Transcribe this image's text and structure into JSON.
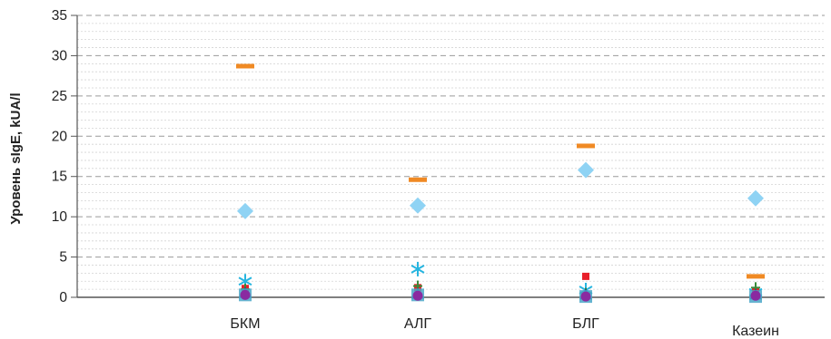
{
  "chart_data": {
    "type": "scatter",
    "ylabel": "Уровень sIgE, kUA/l",
    "ylim": [
      0,
      35
    ],
    "yticks": [
      0,
      5,
      10,
      15,
      20,
      25,
      30,
      35
    ],
    "minor_step": 1,
    "grid": true,
    "categories": [
      "БКМ",
      "АЛГ",
      "БЛГ",
      "Казеин"
    ],
    "series": [
      {
        "marker": "dash",
        "color": "#f08a24",
        "values": [
          28.7,
          14.6,
          18.8,
          2.6
        ]
      },
      {
        "marker": "diamond",
        "color": "#8fd3f4",
        "values": [
          10.7,
          11.4,
          15.8,
          12.3
        ]
      },
      {
        "marker": "star",
        "color": "#26b5e0",
        "values": [
          2.0,
          3.5,
          0.9,
          0.6
        ]
      },
      {
        "marker": "square",
        "color": "#e8202a",
        "values": [
          1.1,
          1.2,
          2.6,
          0.8
        ]
      },
      {
        "marker": "plus",
        "color": "#3a8a3a",
        "values": [
          1.0,
          1.4,
          0.5,
          1.2
        ]
      },
      {
        "marker": "triangle",
        "color": "#1f4e8c",
        "values": [
          0.5,
          0.4,
          0.3,
          0.3
        ]
      },
      {
        "marker": "square-big",
        "color": "#4aa7c8",
        "values": [
          0.3,
          0.3,
          0.1,
          0.1
        ]
      },
      {
        "marker": "circle",
        "color": "#8a2aa0",
        "values": [
          0.3,
          0.2,
          0.1,
          0.2
        ]
      }
    ]
  }
}
